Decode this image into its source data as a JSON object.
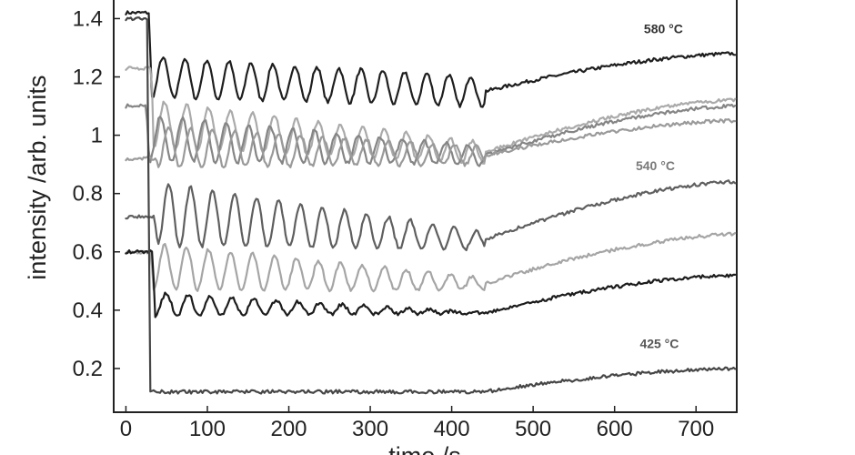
{
  "chart_data": {
    "type": "line",
    "title": "",
    "xlabel": "time /s",
    "ylabel": "intensity /arb. units",
    "xlim": [
      -15,
      750
    ],
    "ylim": [
      0.05,
      1.47
    ],
    "x_ticks": [
      0,
      100,
      200,
      300,
      400,
      500,
      600,
      700
    ],
    "y_ticks": [
      0.2,
      0.4,
      0.6,
      0.8,
      1,
      1.2,
      1.4
    ],
    "y_tick_labels": [
      "0.2",
      "0.4",
      "0.6",
      "0.8",
      "1",
      "1.2",
      "1.4"
    ],
    "grid": false,
    "legend": "none",
    "annotations": [
      {
        "text": "580 °C",
        "x": 660,
        "y": 1.35,
        "color": "#333333"
      },
      {
        "text": "540 °C",
        "x": 650,
        "y": 0.88,
        "color": "#7a7a7a"
      },
      {
        "text": "425 °C",
        "x": 655,
        "y": 0.27,
        "color": "#555555"
      }
    ],
    "series": [
      {
        "color": "#1e1e1e",
        "start": 1.42,
        "drop_x": 28,
        "min": 1.13,
        "osc_center": 1.2,
        "osc_amp0": 0.07,
        "osc_amp1": 0.05,
        "period": 27,
        "end_osc_x": 440,
        "level_at_end_osc": 1.15,
        "end": 1.28
      },
      {
        "color": "#aaaaaa",
        "start": 1.23,
        "drop_x": 30,
        "min": 1.1,
        "osc_center": 1.04,
        "osc_amp0": 0.08,
        "osc_amp1": 0.035,
        "period": 27,
        "end_osc_x": 440,
        "level_at_end_osc": 0.94,
        "end": 1.12
      },
      {
        "color": "#858585",
        "start": 1.1,
        "drop_x": 25,
        "min": 0.9,
        "osc_center": 0.99,
        "osc_amp0": 0.08,
        "osc_amp1": 0.03,
        "period": 27,
        "end_osc_x": 440,
        "level_at_end_osc": 0.93,
        "end": 1.1
      },
      {
        "color": "#9a9a9a",
        "start": 0.92,
        "drop_x": 35,
        "min": 0.9,
        "osc_center": 0.96,
        "osc_amp0": 0.07,
        "osc_amp1": 0.03,
        "period": 27,
        "end_osc_x": 440,
        "level_at_end_osc": 0.93,
        "end": 1.05
      },
      {
        "color": "#5f5f5f",
        "start": 0.72,
        "drop_x": 35,
        "min": 0.62,
        "osc_center": 0.73,
        "osc_amp0": 0.11,
        "osc_amp1": 0.03,
        "period": 27,
        "end_osc_x": 440,
        "level_at_end_osc": 0.64,
        "end": 0.84
      },
      {
        "color": "#a5a5a5",
        "start": 0.6,
        "drop_x": 30,
        "min": 0.5,
        "osc_center": 0.55,
        "osc_amp0": 0.08,
        "osc_amp1": 0.02,
        "period": 27,
        "end_osc_x": 440,
        "level_at_end_osc": 0.49,
        "end": 0.66
      },
      {
        "color": "#1c1c1c",
        "start": 0.6,
        "drop_x": 32,
        "min": 0.42,
        "osc_center": 0.42,
        "osc_amp0": 0.04,
        "osc_amp1": 0.0,
        "period": 27,
        "end_osc_x": 440,
        "level_at_end_osc": 0.39,
        "end": 0.52
      },
      {
        "color": "#464646",
        "start": 1.4,
        "drop_x": 26,
        "min": 0.12,
        "osc_center": 0.12,
        "osc_amp0": 0.0,
        "osc_amp1": 0.0,
        "period": 27,
        "end_osc_x": 440,
        "level_at_end_osc": 0.12,
        "end": 0.2
      }
    ]
  }
}
